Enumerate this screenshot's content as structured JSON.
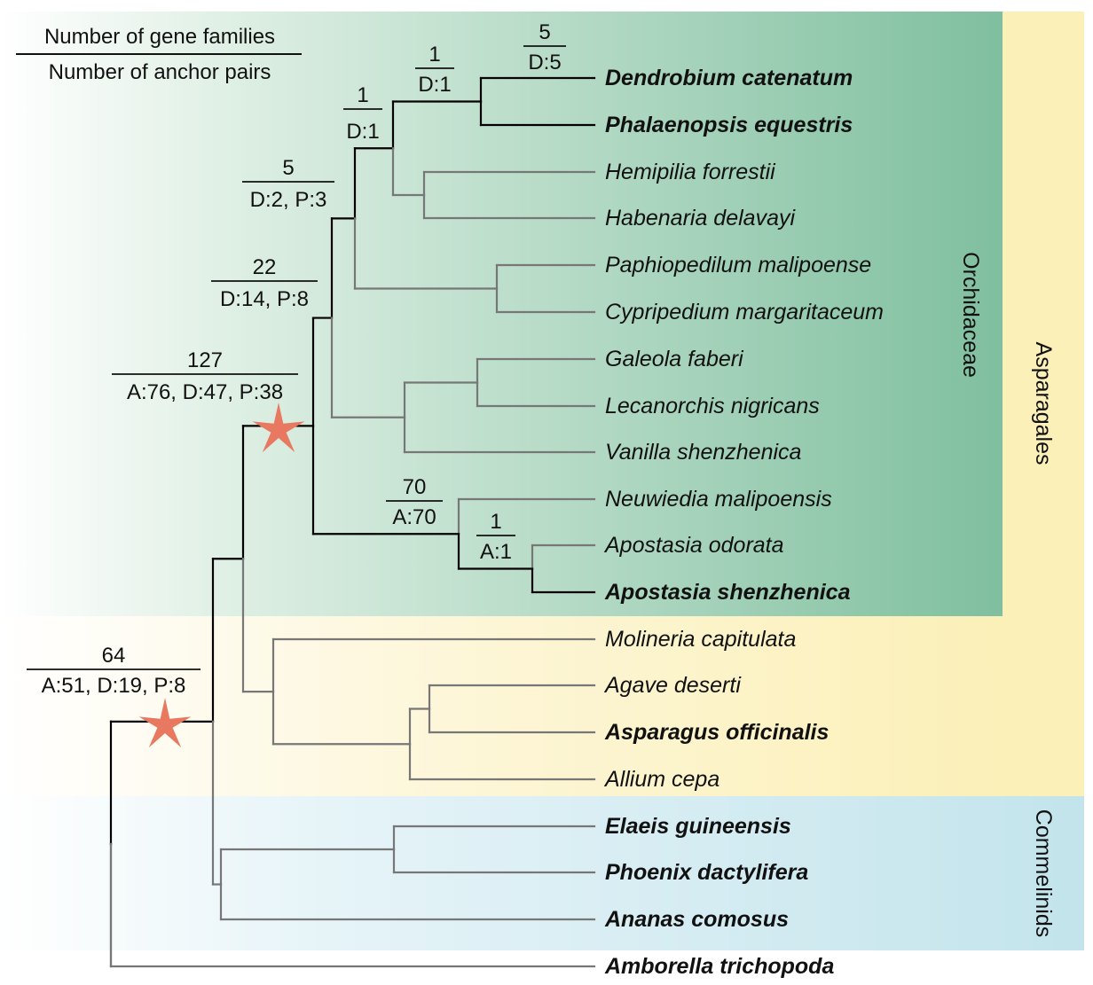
{
  "legend": {
    "numerator": "Number of gene families",
    "denominator": "Number of anchor pairs"
  },
  "clades": {
    "orchidaceae": "Orchidaceae",
    "asparagales": "Asparagales",
    "commelinids": "Commelinids"
  },
  "colors": {
    "orchidaceae_band": "#7fbf9f",
    "asparagales_band": "#fbf0b8",
    "commelinids_band": "#c3e4ec",
    "highlight_branch": "#000000",
    "plain_branch": "#777777",
    "wgd_star": "#e8785f"
  },
  "node_labels": [
    {
      "id": "dendro_phal",
      "top": "5",
      "bottom": "D:5"
    },
    {
      "id": "epidendroid_core",
      "top": "1",
      "bottom": "D:1"
    },
    {
      "id": "epidendroid",
      "top": "1",
      "bottom": "D:1"
    },
    {
      "id": "dp_cyp",
      "top": "5",
      "bottom": "D:2, P:3"
    },
    {
      "id": "dp_vanil",
      "top": "22",
      "bottom": "D:14, P:8"
    },
    {
      "id": "orchidaceae_root",
      "top": "127",
      "bottom": "A:76, D:47, P:38"
    },
    {
      "id": "apostasioideae",
      "top": "70",
      "bottom": "A:70"
    },
    {
      "id": "apostasia",
      "top": "1",
      "bottom": "A:1"
    },
    {
      "id": "monocots",
      "top": "64",
      "bottom": "A:51, D:19, P:8"
    }
  ],
  "wgd_markers": [
    "orchidaceae_root",
    "monocots"
  ],
  "taxa": [
    {
      "name": "Dendrobium catenatum",
      "bold": true
    },
    {
      "name": "Phalaenopsis equestris",
      "bold": true
    },
    {
      "name": "Hemipilia forrestii",
      "bold": false
    },
    {
      "name": "Habenaria delavayi",
      "bold": false
    },
    {
      "name": "Paphiopedilum malipoense",
      "bold": false
    },
    {
      "name": "Cypripedium margaritaceum",
      "bold": false
    },
    {
      "name": "Galeola faberi",
      "bold": false
    },
    {
      "name": "Lecanorchis nigricans",
      "bold": false
    },
    {
      "name": "Vanilla shenzhenica",
      "bold": false
    },
    {
      "name": "Neuwiedia malipoensis",
      "bold": false
    },
    {
      "name": "Apostasia odorata",
      "bold": false
    },
    {
      "name": "Apostasia shenzhenica",
      "bold": true
    },
    {
      "name": "Molineria capitulata",
      "bold": false
    },
    {
      "name": "Agave deserti",
      "bold": false
    },
    {
      "name": "Asparagus officinalis",
      "bold": true
    },
    {
      "name": "Allium cepa",
      "bold": false
    },
    {
      "name": "Elaeis guineensis",
      "bold": true
    },
    {
      "name": "Phoenix dactylifera",
      "bold": true
    },
    {
      "name": "Ananas comosus",
      "bold": true
    },
    {
      "name": "Amborella trichopoda",
      "bold": true
    }
  ]
}
